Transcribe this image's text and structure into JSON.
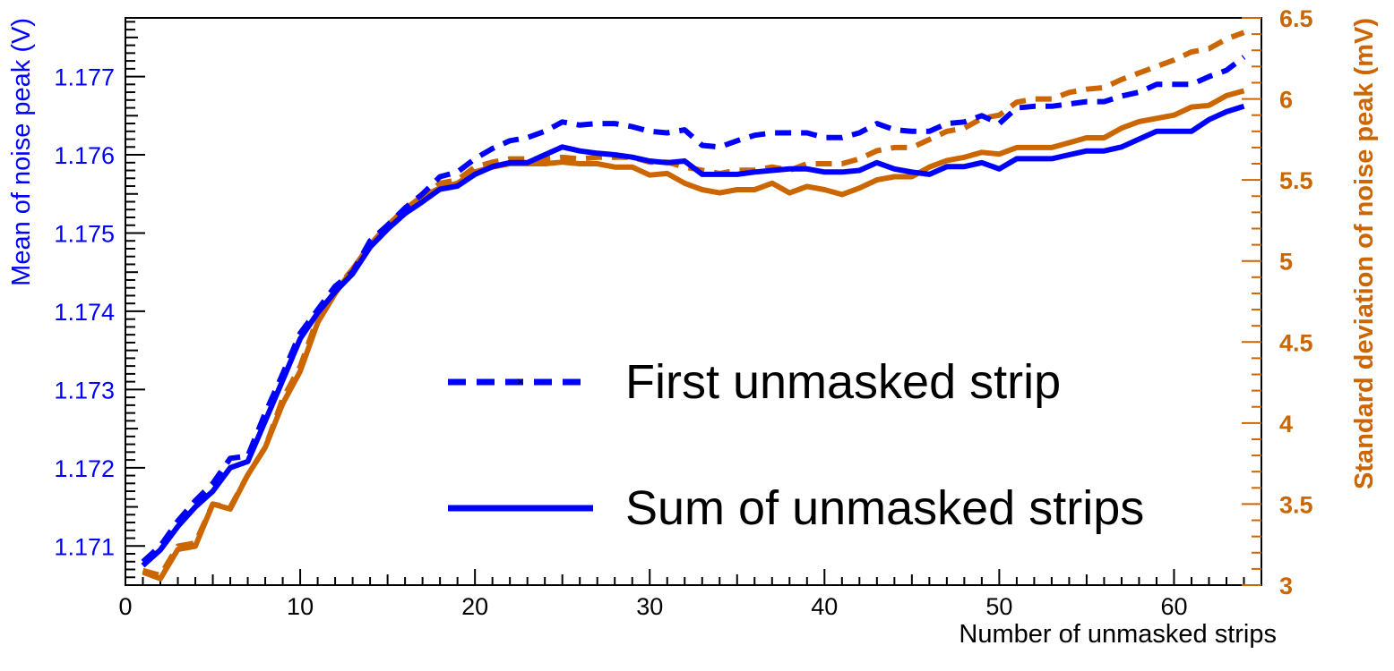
{
  "chart_data": {
    "type": "line",
    "xlabel": "Number of unmasked strips",
    "ylabel": "Mean of noise peak (V)",
    "y2label": "Standard deviation of noise peak (mV)",
    "xlim": [
      0,
      65
    ],
    "ylim": [
      1.1705,
      1.17775
    ],
    "y2lim": [
      3,
      6.5
    ],
    "x_ticks": [
      0,
      10,
      20,
      30,
      40,
      50,
      60
    ],
    "y_ticks": [
      1.171,
      1.172,
      1.173,
      1.174,
      1.175,
      1.176,
      1.177
    ],
    "y_tick_labels": [
      "1.171",
      "1.172",
      "1.173",
      "1.174",
      "1.175",
      "1.176",
      "1.177"
    ],
    "y2_ticks": [
      3,
      3.5,
      4,
      4.5,
      5,
      5.5,
      6,
      6.5
    ],
    "y2_tick_labels": [
      "3",
      "3.5",
      "4",
      "4.5",
      "5",
      "5.5",
      "6",
      "6.5"
    ],
    "grid": false,
    "legend": {
      "position": "center-right",
      "entries": [
        "First unmasked strip",
        "Sum of unmasked strips"
      ]
    },
    "colors": {
      "mean": "#0000ff",
      "std": "#cc6600"
    },
    "x": [
      1,
      2,
      3,
      4,
      5,
      6,
      7,
      8,
      9,
      10,
      11,
      12,
      13,
      14,
      15,
      16,
      17,
      18,
      19,
      20,
      21,
      22,
      23,
      24,
      25,
      26,
      27,
      28,
      29,
      30,
      31,
      32,
      33,
      34,
      35,
      36,
      37,
      38,
      39,
      40,
      41,
      42,
      43,
      44,
      45,
      46,
      47,
      48,
      49,
      50,
      51,
      52,
      53,
      54,
      55,
      56,
      57,
      58,
      59,
      60,
      61,
      62,
      63,
      64
    ],
    "series": [
      {
        "axis": "left",
        "style": "dashed",
        "color": "#0000ff",
        "values": [
          1.1708,
          1.171,
          1.17132,
          1.17158,
          1.1718,
          1.17212,
          1.17215,
          1.1727,
          1.1732,
          1.17372,
          1.17402,
          1.17432,
          1.1745,
          1.1749,
          1.1751,
          1.17532,
          1.1755,
          1.17572,
          1.17578,
          1.17595,
          1.17608,
          1.17618,
          1.17622,
          1.1763,
          1.17642,
          1.17638,
          1.1764,
          1.1764,
          1.17636,
          1.1763,
          1.17628,
          1.17632,
          1.17612,
          1.1761,
          1.17618,
          1.17625,
          1.17628,
          1.17628,
          1.17628,
          1.17622,
          1.17622,
          1.17628,
          1.1764,
          1.17632,
          1.1763,
          1.1763,
          1.1764,
          1.17642,
          1.1765,
          1.1764,
          1.1766,
          1.17662,
          1.17662,
          1.17665,
          1.17668,
          1.17668,
          1.17675,
          1.1768,
          1.1769,
          1.1769,
          1.1769,
          1.177,
          1.17708,
          1.17725
        ]
      },
      {
        "axis": "left",
        "style": "solid",
        "color": "#0000ff",
        "values": [
          1.17075,
          1.17095,
          1.17125,
          1.1715,
          1.1717,
          1.172,
          1.17208,
          1.1726,
          1.17312,
          1.17365,
          1.17398,
          1.17425,
          1.17448,
          1.17482,
          1.17505,
          1.17525,
          1.1754,
          1.17556,
          1.1756,
          1.17575,
          1.17585,
          1.1759,
          1.1759,
          1.176,
          1.1761,
          1.17605,
          1.17602,
          1.176,
          1.17597,
          1.17592,
          1.1759,
          1.17592,
          1.17575,
          1.17575,
          1.17575,
          1.17578,
          1.1758,
          1.17582,
          1.17582,
          1.17578,
          1.17578,
          1.1758,
          1.1759,
          1.17582,
          1.17578,
          1.17575,
          1.17585,
          1.17585,
          1.1759,
          1.17582,
          1.17595,
          1.17595,
          1.17595,
          1.176,
          1.17605,
          1.17605,
          1.1761,
          1.1762,
          1.1763,
          1.1763,
          1.1763,
          1.17645,
          1.17655,
          1.17662
        ]
      },
      {
        "axis": "right",
        "style": "dashed",
        "color": "#cc6600",
        "values": [
          3.09,
          3.06,
          3.24,
          3.26,
          3.5,
          3.48,
          3.68,
          3.85,
          4.15,
          4.35,
          4.65,
          4.82,
          4.95,
          5.1,
          5.22,
          5.32,
          5.4,
          5.48,
          5.5,
          5.58,
          5.61,
          5.63,
          5.63,
          5.63,
          5.64,
          5.63,
          5.64,
          5.64,
          5.64,
          5.61,
          5.61,
          5.58,
          5.56,
          5.54,
          5.56,
          5.56,
          5.58,
          5.56,
          5.6,
          5.6,
          5.6,
          5.63,
          5.68,
          5.7,
          5.7,
          5.75,
          5.8,
          5.82,
          5.88,
          5.9,
          5.98,
          6.0,
          6.0,
          6.04,
          6.06,
          6.07,
          6.12,
          6.16,
          6.2,
          6.24,
          6.29,
          6.31,
          6.37,
          6.41
        ]
      },
      {
        "axis": "right",
        "style": "solid",
        "color": "#cc6600",
        "values": [
          3.08,
          3.04,
          3.22,
          3.24,
          3.5,
          3.47,
          3.68,
          3.85,
          4.12,
          4.32,
          4.62,
          4.8,
          4.95,
          5.1,
          5.22,
          5.32,
          5.4,
          5.45,
          5.48,
          5.55,
          5.58,
          5.6,
          5.6,
          5.6,
          5.61,
          5.6,
          5.6,
          5.58,
          5.58,
          5.53,
          5.54,
          5.48,
          5.44,
          5.42,
          5.44,
          5.44,
          5.48,
          5.42,
          5.46,
          5.44,
          5.41,
          5.45,
          5.5,
          5.52,
          5.52,
          5.58,
          5.62,
          5.64,
          5.67,
          5.66,
          5.7,
          5.7,
          5.7,
          5.73,
          5.76,
          5.76,
          5.82,
          5.86,
          5.88,
          5.9,
          5.95,
          5.96,
          6.02,
          6.05
        ]
      }
    ]
  }
}
